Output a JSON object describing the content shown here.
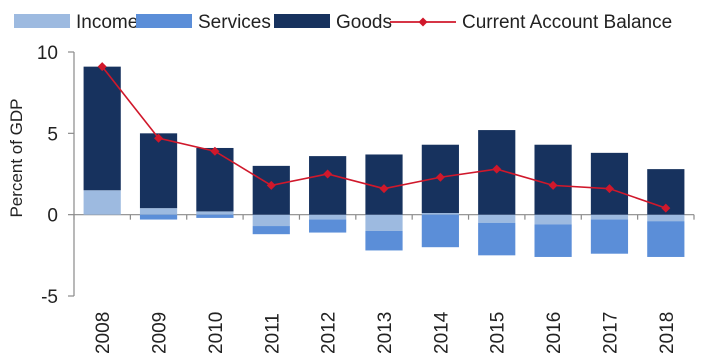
{
  "chart_data": {
    "type": "bar",
    "stacked": true,
    "categories": [
      "2008",
      "2009",
      "2010",
      "2011",
      "2012",
      "2013",
      "2014",
      "2015",
      "2016",
      "2017",
      "2018"
    ],
    "series": [
      {
        "name": "Income",
        "color": "#9DBAE0",
        "values": [
          1.5,
          0.4,
          0.2,
          -0.7,
          -0.3,
          -1.0,
          0.1,
          -0.5,
          -0.6,
          -0.3,
          -0.4
        ]
      },
      {
        "name": "Services",
        "color": "#5B8ED8",
        "values": [
          0.0,
          -0.3,
          -0.2,
          -0.5,
          -0.8,
          -1.2,
          -2.0,
          -2.0,
          -2.0,
          -2.1,
          -2.2
        ]
      },
      {
        "name": "Goods",
        "color": "#17325E",
        "values": [
          7.6,
          4.6,
          3.9,
          3.0,
          3.6,
          3.7,
          4.2,
          5.2,
          4.3,
          3.8,
          2.8
        ]
      }
    ],
    "line_series": {
      "name": "Current Account Balance",
      "color": "#D0182B",
      "values": [
        9.1,
        4.7,
        3.9,
        1.8,
        2.5,
        1.6,
        2.3,
        2.8,
        1.8,
        1.6,
        0.4
      ]
    },
    "ylabel": "Percent of GDP",
    "xlabel": "",
    "ylim": [
      -5,
      10
    ],
    "yticks": [
      "10",
      "5",
      "0",
      "-5"
    ],
    "grid": false,
    "legend_position": "top"
  }
}
